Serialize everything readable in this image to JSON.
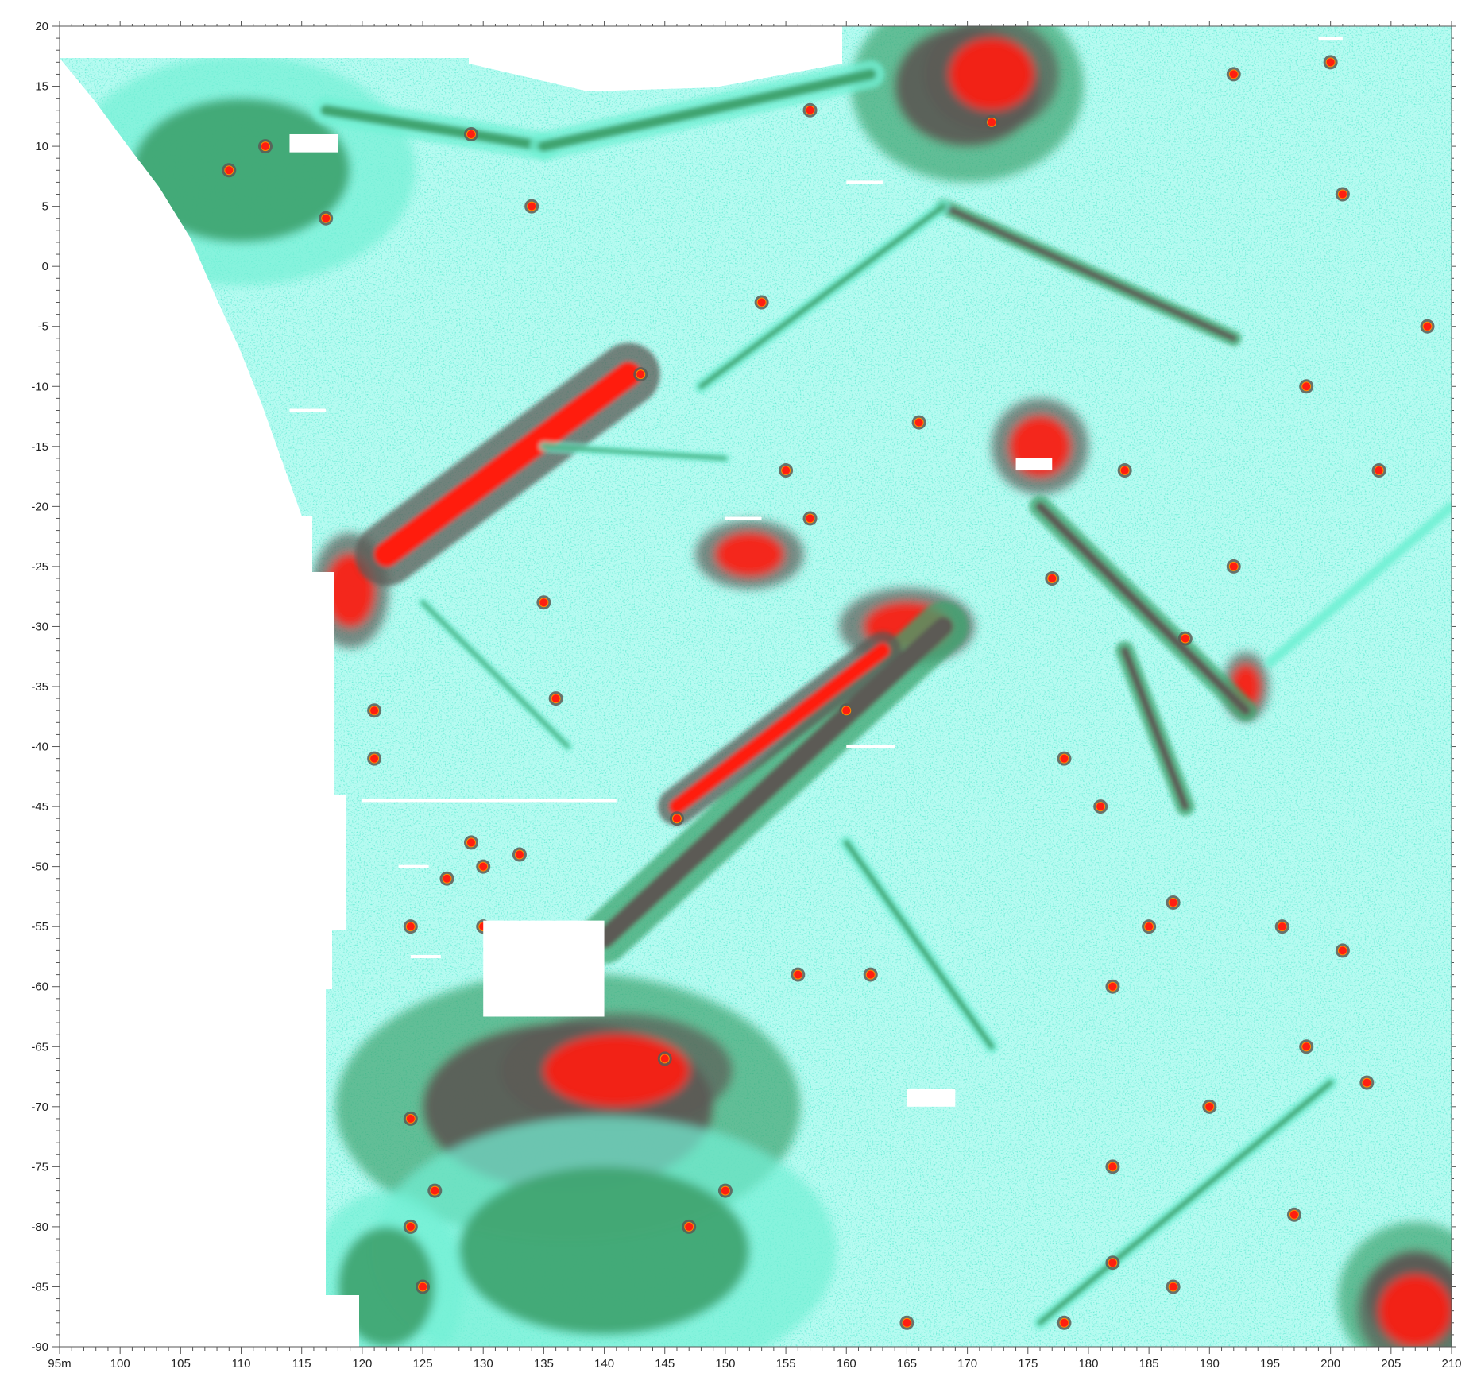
{
  "map": {
    "x_axis": {
      "unit_suffix": "m",
      "range": [
        95,
        210
      ],
      "ticks": [
        {
          "value": 95,
          "label": "95m"
        },
        {
          "value": 100,
          "label": "100"
        },
        {
          "value": 105,
          "label": "105"
        },
        {
          "value": 110,
          "label": "110"
        },
        {
          "value": 115,
          "label": "115"
        },
        {
          "value": 120,
          "label": "120"
        },
        {
          "value": 125,
          "label": "125"
        },
        {
          "value": 130,
          "label": "130"
        },
        {
          "value": 135,
          "label": "135"
        },
        {
          "value": 140,
          "label": "140"
        },
        {
          "value": 145,
          "label": "145"
        },
        {
          "value": 150,
          "label": "150"
        },
        {
          "value": 155,
          "label": "155"
        },
        {
          "value": 160,
          "label": "160"
        },
        {
          "value": 165,
          "label": "165"
        },
        {
          "value": 170,
          "label": "170"
        },
        {
          "value": 175,
          "label": "175"
        },
        {
          "value": 180,
          "label": "180"
        },
        {
          "value": 185,
          "label": "185"
        },
        {
          "value": 190,
          "label": "190"
        },
        {
          "value": 195,
          "label": "195"
        },
        {
          "value": 200,
          "label": "200"
        },
        {
          "value": 205,
          "label": "205"
        },
        {
          "value": 210,
          "label": "210"
        }
      ]
    },
    "y_axis": {
      "range": [
        -90,
        20
      ],
      "ticks": [
        {
          "value": 20,
          "label": "20"
        },
        {
          "value": 15,
          "label": "15"
        },
        {
          "value": 10,
          "label": "10"
        },
        {
          "value": 5,
          "label": "5"
        },
        {
          "value": 0,
          "label": "0"
        },
        {
          "value": -5,
          "label": "-5"
        },
        {
          "value": -10,
          "label": "-10"
        },
        {
          "value": -15,
          "label": "-15"
        },
        {
          "value": -20,
          "label": "-20"
        },
        {
          "value": -25,
          "label": "-25"
        },
        {
          "value": -30,
          "label": "-30"
        },
        {
          "value": -35,
          "label": "-35"
        },
        {
          "value": -40,
          "label": "-40"
        },
        {
          "value": -45,
          "label": "-45"
        },
        {
          "value": -50,
          "label": "-50"
        },
        {
          "value": -55,
          "label": "-55"
        },
        {
          "value": -60,
          "label": "-60"
        },
        {
          "value": -65,
          "label": "-65"
        },
        {
          "value": -70,
          "label": "-70"
        },
        {
          "value": -75,
          "label": "-75"
        },
        {
          "value": -80,
          "label": "-80"
        },
        {
          "value": -85,
          "label": "-85"
        },
        {
          "value": -90,
          "label": "-90"
        }
      ]
    },
    "colors": {
      "background": "#b6fbf1",
      "low": "#72f0d4",
      "medium": "#3fa46f",
      "high": "#5b5a55",
      "peak": "#ff1e10",
      "peak_edge": "#ff8a00",
      "no_data": "#ffffff",
      "axis": "#555555"
    },
    "anomalies": {
      "linear_features": [
        {
          "from": [
            122,
            -24
          ],
          "to": [
            142,
            -9
          ],
          "level": "peak",
          "weight": 2.0
        },
        {
          "from": [
            140,
            -56
          ],
          "to": [
            168,
            -30
          ],
          "level": "high",
          "weight": 1.6
        },
        {
          "from": [
            146,
            -45
          ],
          "to": [
            163,
            -32
          ],
          "level": "peak",
          "weight": 1.2
        },
        {
          "from": [
            117,
            13
          ],
          "to": [
            135,
            10
          ],
          "level": "medium",
          "weight": 0.9
        },
        {
          "from": [
            135,
            10
          ],
          "to": [
            162,
            16
          ],
          "level": "medium",
          "weight": 0.9
        },
        {
          "from": [
            168,
            5
          ],
          "to": [
            192,
            -6
          ],
          "level": "high",
          "weight": 0.5
        },
        {
          "from": [
            148,
            -10
          ],
          "to": [
            168,
            5
          ],
          "level": "medium",
          "weight": 0.45
        },
        {
          "from": [
            176,
            -20
          ],
          "to": [
            193,
            -37
          ],
          "level": "high",
          "weight": 0.7
        },
        {
          "from": [
            183,
            -32
          ],
          "to": [
            188,
            -45
          ],
          "level": "high",
          "weight": 0.6
        },
        {
          "from": [
            160,
            -48
          ],
          "to": [
            172,
            -65
          ],
          "level": "medium",
          "weight": 0.45
        },
        {
          "from": [
            176,
            -88
          ],
          "to": [
            200,
            -68
          ],
          "level": "medium",
          "weight": 0.45
        },
        {
          "from": [
            195,
            -33
          ],
          "to": [
            210,
            -20
          ],
          "level": "low",
          "weight": 0.35
        },
        {
          "from": [
            125,
            -28
          ],
          "to": [
            137,
            -40
          ],
          "level": "medium",
          "weight": 0.3
        },
        {
          "from": [
            135,
            -15
          ],
          "to": [
            150,
            -16
          ],
          "level": "medium",
          "weight": 0.3
        }
      ],
      "zones": [
        {
          "center": [
            170,
            15
          ],
          "radius": [
            6,
            5
          ],
          "level": "high"
        },
        {
          "center": [
            172,
            16
          ],
          "radius": [
            3.5,
            3
          ],
          "level": "peak"
        },
        {
          "center": [
            110,
            8
          ],
          "radius": [
            9,
            6
          ],
          "level": "medium"
        },
        {
          "center": [
            137,
            -70
          ],
          "radius": [
            12,
            7
          ],
          "level": "high"
        },
        {
          "center": [
            141,
            -67
          ],
          "radius": [
            6,
            3
          ],
          "level": "peak"
        },
        {
          "center": [
            140,
            -82
          ],
          "radius": [
            12,
            7
          ],
          "level": "medium"
        },
        {
          "center": [
            122,
            -85
          ],
          "radius": [
            4,
            5
          ],
          "level": "medium"
        },
        {
          "center": [
            176,
            -15
          ],
          "radius": [
            2.5,
            2.5
          ],
          "level": "peak"
        },
        {
          "center": [
            152,
            -24
          ],
          "radius": [
            2.8,
            1.8
          ],
          "level": "peak"
        },
        {
          "center": [
            207,
            -86
          ],
          "radius": [
            4,
            4
          ],
          "level": "high"
        },
        {
          "center": [
            207,
            -87
          ],
          "radius": [
            3,
            3
          ],
          "level": "peak"
        },
        {
          "center": [
            165,
            -30
          ],
          "radius": [
            3.5,
            2
          ],
          "level": "peak"
        },
        {
          "center": [
            119,
            -27
          ],
          "radius": [
            2,
            3
          ],
          "level": "peak"
        },
        {
          "center": [
            193,
            -35
          ],
          "radius": [
            1.2,
            1.8
          ],
          "level": "peak"
        }
      ],
      "spots": [
        [
          129,
          11
        ],
        [
          134,
          5
        ],
        [
          157,
          13
        ],
        [
          192,
          16
        ],
        [
          112,
          10
        ],
        [
          109,
          8
        ],
        [
          117,
          4
        ],
        [
          153,
          -3
        ],
        [
          143,
          -9
        ],
        [
          166,
          -13
        ],
        [
          183,
          -17
        ],
        [
          155,
          -17
        ],
        [
          157,
          -21
        ],
        [
          135,
          -28
        ],
        [
          136,
          -36
        ],
        [
          146,
          -46
        ],
        [
          133,
          -49
        ],
        [
          130,
          -50
        ],
        [
          127,
          -51
        ],
        [
          124,
          -55
        ],
        [
          124,
          -80
        ],
        [
          125,
          -85
        ],
        [
          187,
          -53
        ],
        [
          185,
          -55
        ],
        [
          201,
          -57
        ],
        [
          182,
          -60
        ],
        [
          190,
          -70
        ],
        [
          182,
          -75
        ],
        [
          208,
          -5
        ],
        [
          192,
          -25
        ],
        [
          196,
          -55
        ],
        [
          198,
          -65
        ],
        [
          156,
          -59
        ],
        [
          165,
          -88
        ],
        [
          145,
          -66
        ],
        [
          147,
          -80
        ],
        [
          126,
          -77
        ],
        [
          150,
          -77
        ],
        [
          124,
          -71
        ],
        [
          130,
          -55
        ],
        [
          129,
          -48
        ],
        [
          181,
          -45
        ],
        [
          160,
          -37
        ],
        [
          177,
          -26
        ],
        [
          188,
          -31
        ],
        [
          204,
          -17
        ],
        [
          198,
          -10
        ],
        [
          178,
          -41
        ],
        [
          200,
          17
        ],
        [
          201,
          6
        ],
        [
          172,
          12
        ],
        [
          121,
          -37
        ],
        [
          121,
          -41
        ],
        [
          162,
          -59
        ],
        [
          182,
          -83
        ],
        [
          187,
          -85
        ],
        [
          197,
          -79
        ],
        [
          203,
          -68
        ],
        [
          178,
          -88
        ]
      ],
      "white_marks": [
        {
          "from": [
            114,
            -12
          ],
          "to": [
            117,
            -12
          ]
        },
        {
          "from": [
            120,
            -44.5
          ],
          "to": [
            141,
            -44.5
          ]
        },
        {
          "from": [
            123,
            -50
          ],
          "to": [
            125.5,
            -50
          ]
        },
        {
          "from": [
            124,
            -57.5
          ],
          "to": [
            126.5,
            -57.5
          ]
        },
        {
          "from": [
            160,
            7
          ],
          "to": [
            163,
            7
          ]
        },
        {
          "from": [
            150,
            -21
          ],
          "to": [
            153,
            -21
          ]
        },
        {
          "from": [
            160,
            -40
          ],
          "to": [
            164,
            -40
          ]
        },
        {
          "from": [
            199,
            19
          ],
          "to": [
            201,
            19
          ]
        }
      ],
      "white_blocks": [
        {
          "x": [
            114,
            118
          ],
          "y": [
            9.5,
            11
          ]
        },
        {
          "x": [
            174,
            177
          ],
          "y": [
            -17,
            -16
          ]
        },
        {
          "x": [
            165,
            169
          ],
          "y": [
            -70,
            -68.5
          ]
        },
        {
          "x": [
            130,
            140
          ],
          "y": [
            -62.5,
            -54.5
          ]
        }
      ]
    }
  }
}
